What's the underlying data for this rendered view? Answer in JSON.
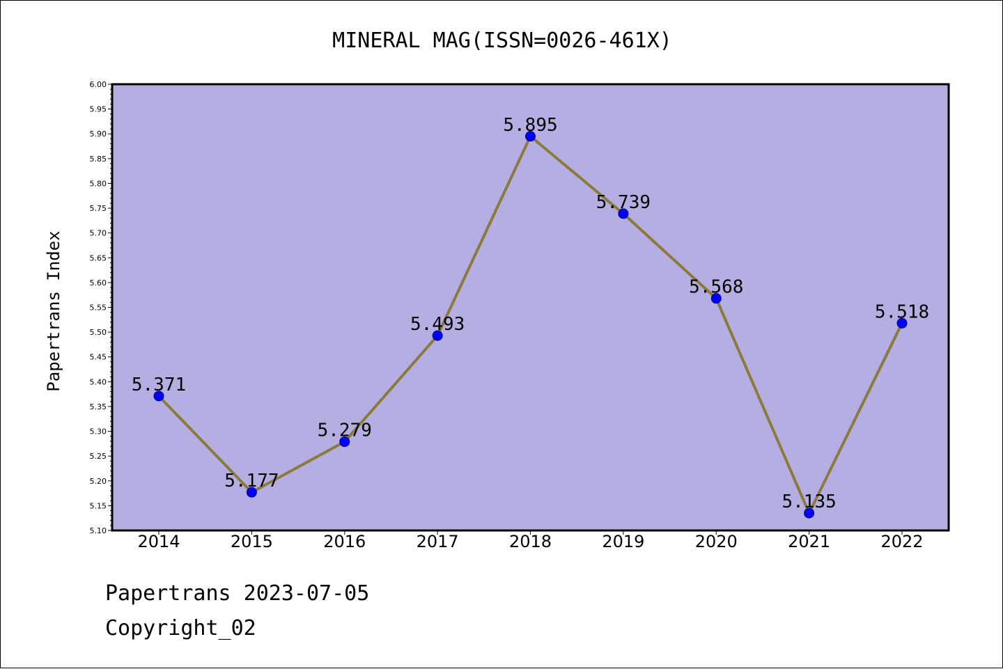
{
  "chart_data": {
    "type": "line",
    "title": "MINERAL MAG(ISSN=0026-461X)",
    "xlabel": "",
    "ylabel": "Papertrans Index",
    "categories": [
      "2014",
      "2015",
      "2016",
      "2017",
      "2018",
      "2019",
      "2020",
      "2021",
      "2022"
    ],
    "values": [
      5.371,
      5.177,
      5.279,
      5.493,
      5.895,
      5.739,
      5.568,
      5.135,
      5.518
    ],
    "data_labels": [
      "5.371",
      "5.177",
      "5.279",
      "5.493",
      "5.895",
      "5.739",
      "5.568",
      "5.135",
      "5.518"
    ],
    "ylim": [
      5.1,
      6.0
    ],
    "yticks": [
      "5.10",
      "5.15",
      "5.20",
      "5.25",
      "5.30",
      "5.35",
      "5.40",
      "5.45",
      "5.50",
      "5.55",
      "5.60",
      "5.65",
      "5.70",
      "5.75",
      "5.80",
      "5.85",
      "5.90",
      "5.95",
      "6.00"
    ],
    "grid": false,
    "legend": "none",
    "colors": {
      "plot_background": "#b5aee2",
      "line": "#8b7a3a",
      "marker": "#0000ff",
      "marker_edge": "#00008b"
    }
  },
  "footer": {
    "line1": "Papertrans 2023-07-05",
    "line2": "Copyright_02"
  }
}
